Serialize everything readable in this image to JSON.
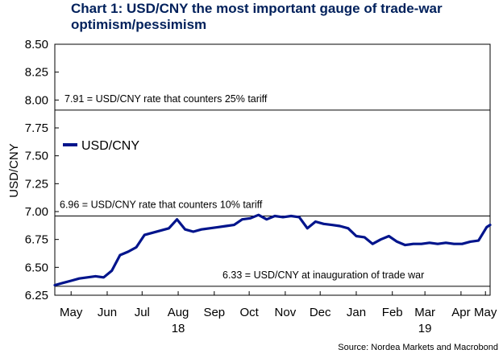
{
  "chart_data": {
    "type": "line",
    "title": "Chart 1: USD/CNY the most important gauge of trade-war optimism/pessimism",
    "ylabel": "USD/CNY",
    "xlabel": "",
    "ylim": [
      6.25,
      8.5
    ],
    "yticks": [
      "6.25",
      "6.50",
      "6.75",
      "7.00",
      "7.25",
      "7.50",
      "7.75",
      "8.00",
      "8.25",
      "8.50"
    ],
    "xlim": [
      "2018-05-01",
      "2019-05-10"
    ],
    "xticks": [
      {
        "date": "2018-05-15",
        "label": "May"
      },
      {
        "date": "2018-06-15",
        "label": "Jun"
      },
      {
        "date": "2018-07-15",
        "label": "Jul"
      },
      {
        "date": "2018-08-15",
        "label": "Aug"
      },
      {
        "date": "2018-09-15",
        "label": "Sep"
      },
      {
        "date": "2018-10-15",
        "label": "Oct"
      },
      {
        "date": "2018-11-15",
        "label": "Nov"
      },
      {
        "date": "2018-12-15",
        "label": "Dec"
      },
      {
        "date": "2019-01-15",
        "label": "Jan"
      },
      {
        "date": "2019-02-15",
        "label": "Feb"
      },
      {
        "date": "2019-03-15",
        "label": "Mar"
      },
      {
        "date": "2019-04-15",
        "label": "Apr"
      },
      {
        "date": "2019-05-06",
        "label": "May"
      }
    ],
    "year_labels": [
      {
        "date": "2018-08-15",
        "label": "18"
      },
      {
        "date": "2019-03-15",
        "label": "19"
      }
    ],
    "legend": {
      "position": "top-left",
      "entries": [
        "USD/CNY"
      ]
    },
    "grid": false,
    "series": [
      {
        "name": "USD/CNY",
        "color": "#00148c",
        "x": [
          "2018-05-01",
          "2018-05-08",
          "2018-05-15",
          "2018-05-22",
          "2018-05-29",
          "2018-06-05",
          "2018-06-12",
          "2018-06-19",
          "2018-06-26",
          "2018-07-03",
          "2018-07-10",
          "2018-07-17",
          "2018-07-24",
          "2018-07-31",
          "2018-08-07",
          "2018-08-14",
          "2018-08-21",
          "2018-08-28",
          "2018-09-04",
          "2018-09-11",
          "2018-09-18",
          "2018-09-25",
          "2018-10-02",
          "2018-10-09",
          "2018-10-16",
          "2018-10-23",
          "2018-10-30",
          "2018-11-06",
          "2018-11-13",
          "2018-11-20",
          "2018-11-27",
          "2018-12-04",
          "2018-12-11",
          "2018-12-18",
          "2018-12-25",
          "2019-01-01",
          "2019-01-08",
          "2019-01-15",
          "2019-01-22",
          "2019-01-29",
          "2019-02-05",
          "2019-02-12",
          "2019-02-19",
          "2019-02-26",
          "2019-03-05",
          "2019-03-12",
          "2019-03-19",
          "2019-03-26",
          "2019-04-02",
          "2019-04-09",
          "2019-04-16",
          "2019-04-23",
          "2019-04-30",
          "2019-05-07",
          "2019-05-10"
        ],
        "values": [
          6.34,
          6.36,
          6.38,
          6.4,
          6.41,
          6.42,
          6.41,
          6.47,
          6.61,
          6.64,
          6.68,
          6.79,
          6.81,
          6.83,
          6.85,
          6.93,
          6.84,
          6.82,
          6.84,
          6.85,
          6.86,
          6.87,
          6.88,
          6.93,
          6.94,
          6.97,
          6.93,
          6.96,
          6.95,
          6.96,
          6.95,
          6.85,
          6.91,
          6.89,
          6.88,
          6.87,
          6.85,
          6.78,
          6.77,
          6.71,
          6.75,
          6.78,
          6.73,
          6.7,
          6.71,
          6.71,
          6.72,
          6.71,
          6.72,
          6.71,
          6.71,
          6.73,
          6.74,
          6.86,
          6.88
        ]
      }
    ],
    "annotations": [
      {
        "text": "7.91 = USD/CNY rate that counters 25% tariff",
        "y": 7.91
      },
      {
        "text": "6.96 = USD/CNY rate that counters 10% tariff",
        "y": 6.96
      },
      {
        "text": "6.33 = USD/CNY at inauguration of trade war",
        "y": 6.33
      }
    ],
    "source": "Source: Nordea Markets and Macrobond"
  }
}
